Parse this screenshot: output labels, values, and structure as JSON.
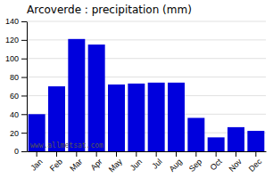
{
  "chart_data": {
    "type": "bar",
    "title": "Arcoverde : precipitation (mm)",
    "categories": [
      "Jan",
      "Feb",
      "Mar",
      "Apr",
      "May",
      "Jun",
      "Jul",
      "Aug",
      "Sep",
      "Oct",
      "Nov",
      "Dec"
    ],
    "values": [
      40,
      70,
      121,
      115,
      72,
      73,
      74,
      74,
      36,
      15,
      26,
      22
    ],
    "color": "#0000dd",
    "ylim": [
      0,
      140
    ],
    "yticks": [
      0,
      20,
      40,
      60,
      80,
      100,
      120,
      140
    ],
    "grid": true,
    "annotations": [
      "www.allmetsat.com"
    ]
  }
}
